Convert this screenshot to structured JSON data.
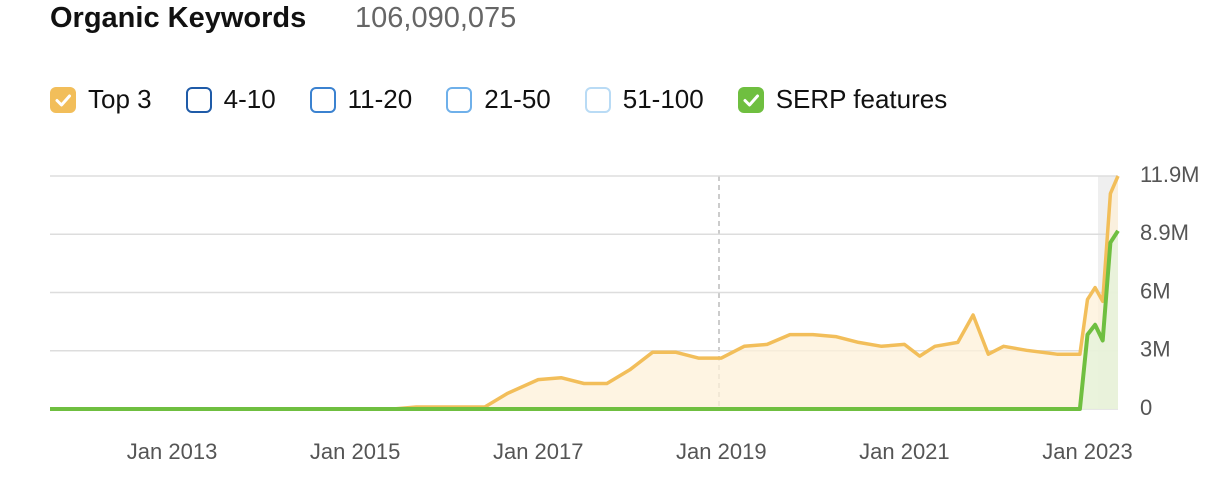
{
  "chart_data": {
    "type": "area-line",
    "title": "Organic Keywords",
    "subtitle": "106,090,075",
    "xlim": [
      "2011-09",
      "2023-05"
    ],
    "xticks": [
      {
        "value": "2013-01",
        "label": "Jan 2013"
      },
      {
        "value": "2015-01",
        "label": "Jan 2015"
      },
      {
        "value": "2017-01",
        "label": "Jan 2017"
      },
      {
        "value": "2019-01",
        "label": "Jan 2019"
      },
      {
        "value": "2021-01",
        "label": "Jan 2021"
      },
      {
        "value": "2023-01",
        "label": "Jan 2023"
      }
    ],
    "ylim": [
      0,
      11900000
    ],
    "yticks": [
      0,
      {
        "value": 2975000,
        "label": "3M"
      },
      {
        "value": 5950000,
        "label": "6M"
      },
      {
        "value": 8925000,
        "label": "8.9M"
      },
      {
        "value": 11900000,
        "label": "11.9M"
      }
    ],
    "grid": true,
    "x": [
      "2011-09",
      "2015-06",
      "2015-09",
      "2016-06",
      "2016-09",
      "2017-01",
      "2017-04",
      "2017-07",
      "2017-10",
      "2018-01",
      "2018-04",
      "2018-07",
      "2018-10",
      "2019-01",
      "2019-04",
      "2019-07",
      "2019-10",
      "2020-01",
      "2020-04",
      "2020-07",
      "2020-10",
      "2021-01",
      "2021-03",
      "2021-05",
      "2021-08",
      "2021-10",
      "2021-12",
      "2022-02",
      "2022-05",
      "2022-09",
      "2022-12",
      "2023-01",
      "2023-02",
      "2023-03",
      "2023-04",
      "2023-05"
    ],
    "series": [
      {
        "name": "Top 3",
        "color": "#f2be5a",
        "checked": true,
        "fill": "#fdf0d8",
        "values": [
          0,
          0,
          100000,
          100000,
          800000,
          1500000,
          1600000,
          1300000,
          1300000,
          2000000,
          2900000,
          2900000,
          2600000,
          2600000,
          3200000,
          3300000,
          3800000,
          3800000,
          3700000,
          3400000,
          3200000,
          3300000,
          2700000,
          3200000,
          3400000,
          4800000,
          2800000,
          3200000,
          3000000,
          2800000,
          2800000,
          5600000,
          6200000,
          5500000,
          11000000,
          11900000
        ]
      },
      {
        "name": "4-10",
        "color": "#1f5ba8",
        "checked": false
      },
      {
        "name": "11-20",
        "color": "#3b82d0",
        "checked": false
      },
      {
        "name": "21-50",
        "color": "#6fb0ea",
        "checked": false
      },
      {
        "name": "51-100",
        "color": "#b9dbf5",
        "checked": false
      },
      {
        "name": "SERP features",
        "color": "#6fbf40",
        "checked": true,
        "fill": "#e3f3da",
        "values": [
          0,
          0,
          0,
          0,
          0,
          0,
          0,
          0,
          0,
          0,
          0,
          0,
          0,
          0,
          0,
          0,
          0,
          0,
          0,
          0,
          0,
          0,
          0,
          0,
          0,
          0,
          0,
          0,
          0,
          0,
          0,
          3800000,
          4300000,
          3500000,
          8500000,
          9100000
        ]
      }
    ]
  }
}
